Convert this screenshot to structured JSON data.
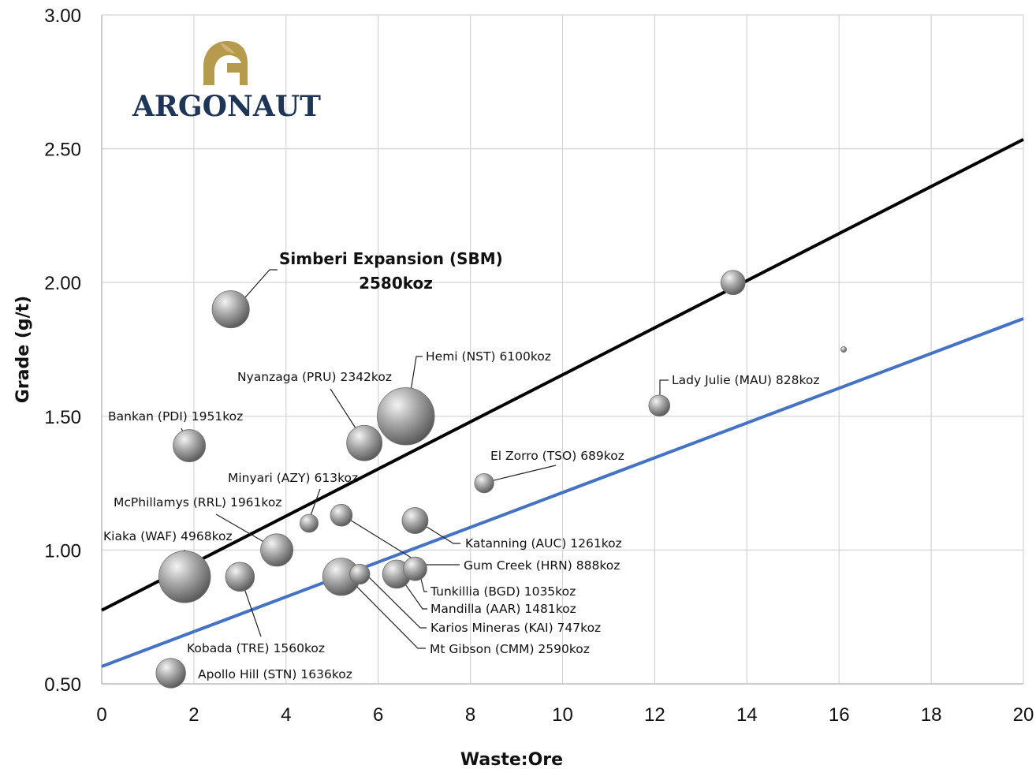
{
  "logo": {
    "text": "ARGONAUT",
    "color": "#1d3557",
    "icon_color": "#b69a4e",
    "icon": "helmet-icon"
  },
  "chart_data": {
    "type": "scatter",
    "subtype": "bubble",
    "title": "",
    "xlabel": "Waste:Ore",
    "ylabel": "Grade (g/t)",
    "xlim": [
      0,
      20
    ],
    "ylim": [
      0.5,
      3.0
    ],
    "x_ticks": [
      "0",
      "2",
      "4",
      "6",
      "8",
      "10",
      "12",
      "14",
      "16",
      "18",
      "20"
    ],
    "y_ticks": [
      "0.50",
      "1.00",
      "1.50",
      "2.00",
      "2.50",
      "3.00"
    ],
    "grid": true,
    "bubble_color": "#8a8a8a",
    "points": [
      {
        "label": "Simberi Expansion  (SBM)",
        "label2": "2580koz",
        "x": 2.8,
        "y": 1.9,
        "koz": 2580,
        "highlight": true
      },
      {
        "label": "Hemi (NST) 6100koz",
        "x": 6.6,
        "y": 1.5,
        "koz": 6100
      },
      {
        "label": "Nyanzaga (PRU) 2342koz",
        "x": 5.7,
        "y": 1.4,
        "koz": 2342
      },
      {
        "label": "Bankan  (PDI) 1951koz",
        "x": 1.9,
        "y": 1.39,
        "koz": 1951
      },
      {
        "label": "Lady Julie  (MAU) 828koz",
        "x": 12.1,
        "y": 1.54,
        "koz": 828
      },
      {
        "label": "El Zorro (TSO) 689koz",
        "x": 8.3,
        "y": 1.25,
        "koz": 689
      },
      {
        "label": "Minyari  (AZY) 613koz",
        "x": 4.5,
        "y": 1.1,
        "koz": 613
      },
      {
        "label": "McPhillamys  (RRL) 1961koz",
        "x": 3.8,
        "y": 1.0,
        "koz": 1961
      },
      {
        "label": "Kiaka  (WAF) 4968koz",
        "x": 1.8,
        "y": 0.9,
        "koz": 4968
      },
      {
        "label": "Katanning  (AUC) 1261koz",
        "x": 6.8,
        "y": 1.11,
        "koz": 1261
      },
      {
        "label": "Gum Creek  (HRN) 888koz",
        "x": 5.2,
        "y": 1.13,
        "koz": 888
      },
      {
        "label": "Tunkillia  (BGD) 1035koz",
        "x": 6.8,
        "y": 0.93,
        "koz": 1035
      },
      {
        "label": "Mandilla  (AAR) 1481koz",
        "x": 6.4,
        "y": 0.91,
        "koz": 1481
      },
      {
        "label": "Karios Mineras (KAI) 747koz",
        "x": 5.6,
        "y": 0.91,
        "koz": 747
      },
      {
        "label": "Mt Gibson  (CMM) 2590koz",
        "x": 5.2,
        "y": 0.9,
        "koz": 2590
      },
      {
        "label": "Kobada  (TRE) 1560koz",
        "x": 3.0,
        "y": 0.9,
        "koz": 1560
      },
      {
        "label": "Apollo Hill (STN) 1636koz",
        "x": 1.5,
        "y": 0.54,
        "koz": 1636
      },
      {
        "label": "",
        "x": 13.7,
        "y": 2.0,
        "koz": 1100
      },
      {
        "label": "",
        "x": 16.1,
        "y": 1.75,
        "koz": 60
      }
    ],
    "trend_lines": [
      {
        "color": "#000000",
        "x": [
          0,
          20
        ],
        "y": [
          0.775,
          2.535
        ]
      },
      {
        "color": "#4472c4",
        "x": [
          0,
          20
        ],
        "y": [
          0.565,
          1.865
        ]
      }
    ]
  }
}
